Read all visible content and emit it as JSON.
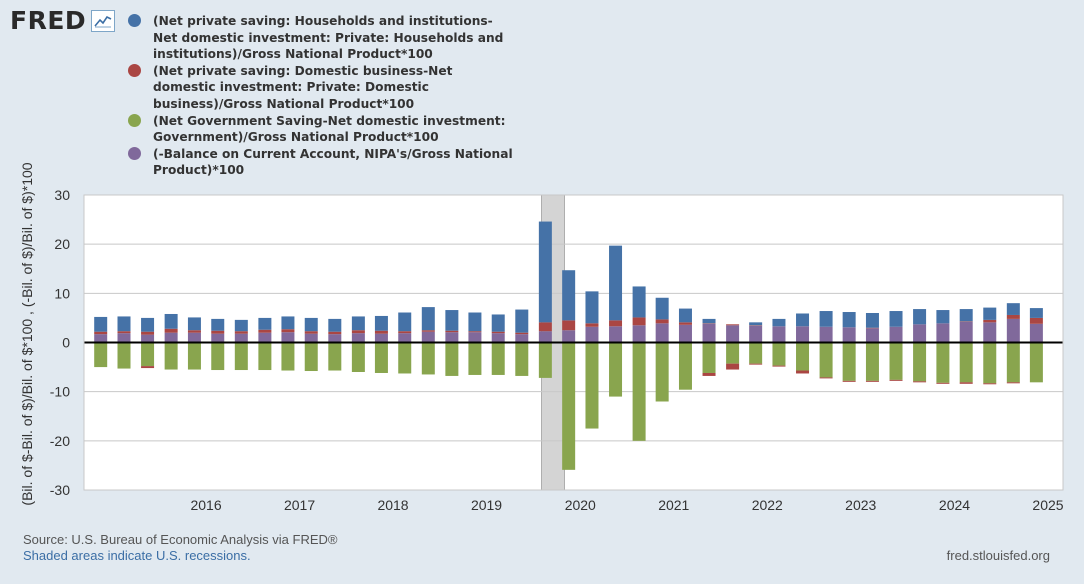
{
  "brand": {
    "name": "FRED"
  },
  "colors": {
    "households": "#4572a7",
    "business": "#aa4643",
    "government": "#89a54e",
    "current_account": "#80699b"
  },
  "chart_data": {
    "type": "bar",
    "stacked": true,
    "title": "",
    "ylabel": "(Bil. of $-Bil. of $)/Bil. of $*100 , (-Bil. of $)/Bil. of $)*100",
    "ylim": [
      -30,
      30
    ],
    "yticks": [
      30,
      20,
      10,
      0,
      -10,
      -20,
      -30
    ],
    "xlim": [
      "2015-04-01",
      "2025-07-01"
    ],
    "xticks": [
      "2016",
      "2017",
      "2018",
      "2019",
      "2020",
      "2021",
      "2022",
      "2023",
      "2024",
      "2025"
    ],
    "grid": true,
    "legend_position": "top-left",
    "recessions": [
      {
        "start": "2020-02-01",
        "end": "2020-04-30"
      }
    ],
    "x": [
      "2015-04-01",
      "2015-07-01",
      "2015-10-01",
      "2016-01-01",
      "2016-04-01",
      "2016-07-01",
      "2016-10-01",
      "2017-01-01",
      "2017-04-01",
      "2017-07-01",
      "2017-10-01",
      "2018-01-01",
      "2018-04-01",
      "2018-07-01",
      "2018-10-01",
      "2019-01-01",
      "2019-04-01",
      "2019-07-01",
      "2019-10-01",
      "2020-01-01",
      "2020-04-01",
      "2020-07-01",
      "2020-10-01",
      "2021-01-01",
      "2021-04-01",
      "2021-07-01",
      "2021-10-01",
      "2022-01-01",
      "2022-04-01",
      "2022-07-01",
      "2022-10-01",
      "2023-01-01",
      "2023-04-01",
      "2023-07-01",
      "2023-10-01",
      "2024-01-01",
      "2024-04-01",
      "2024-07-01",
      "2024-10-01",
      "2025-01-01",
      "2025-04-01"
    ],
    "series": [
      {
        "name": "(Net private saving: Households and institutions-Net domestic investment: Private: Households and institutions)/Gross National Product*100",
        "color": "#4572a7",
        "values": [
          3.0,
          3.0,
          2.8,
          3.0,
          2.6,
          2.4,
          2.3,
          2.4,
          2.6,
          2.7,
          2.6,
          2.8,
          3.0,
          3.8,
          4.7,
          4.2,
          3.8,
          3.5,
          4.7,
          20.5,
          10.2,
          6.5,
          15.2,
          6.3,
          4.4,
          2.8,
          0.9,
          0.0,
          0.6,
          1.5,
          2.6,
          3.2,
          3.1,
          3.0,
          3.2,
          3.1,
          2.7,
          2.5,
          2.5,
          2.4,
          2.0
        ]
      },
      {
        "name": "(Net private saving: Domestic business-Net domestic investment: Private: Domestic business)/Gross National Product*100",
        "color": "#aa4643",
        "values": [
          0.5,
          0.4,
          0.6,
          0.8,
          0.5,
          0.6,
          0.5,
          0.6,
          0.6,
          0.5,
          0.5,
          0.6,
          0.6,
          0.4,
          0.3,
          0.3,
          0.2,
          0.3,
          0.3,
          1.8,
          2.0,
          0.7,
          1.2,
          1.6,
          0.8,
          0.5,
          0.1,
          0.2,
          0.1,
          0.0,
          0.0,
          0.0,
          0.0,
          0.1,
          0.0,
          0.0,
          0.0,
          0.1,
          0.5,
          0.8,
          1.2
        ]
      },
      {
        "name": "(Net Government Saving-Net domestic investment: Government)/Gross National Product*100",
        "color": "#89a54e",
        "values": [
          -5.0,
          -5.3,
          -4.8,
          -5.5,
          -5.5,
          -5.6,
          -5.6,
          -5.6,
          -5.7,
          -5.8,
          -5.7,
          -6.0,
          -6.2,
          -6.3,
          -6.5,
          -6.8,
          -6.6,
          -6.6,
          -6.8,
          -7.2,
          -25.9,
          -17.5,
          -11.0,
          -20.0,
          -12.0,
          -9.6,
          -6.2,
          -4.3,
          -4.3,
          -4.7,
          -5.7,
          -7.1,
          -7.8,
          -7.8,
          -7.6,
          -7.9,
          -8.2,
          -8.1,
          -8.3,
          -8.1,
          -8.1
        ]
      },
      {
        "name": "(-Balance on Current Account, NIPA's/Gross National Product)*100",
        "color": "#80699b",
        "values": [
          1.7,
          1.9,
          1.6,
          2.0,
          2.0,
          1.8,
          1.8,
          2.0,
          2.1,
          1.8,
          1.7,
          1.9,
          1.8,
          1.9,
          2.2,
          2.1,
          2.1,
          1.9,
          1.7,
          2.3,
          2.5,
          3.2,
          3.3,
          3.5,
          3.9,
          3.6,
          3.8,
          3.5,
          3.4,
          3.3,
          3.3,
          3.2,
          3.1,
          2.9,
          3.2,
          3.7,
          3.9,
          4.2,
          4.1,
          4.8,
          3.8
        ]
      }
    ],
    "negative_tails": {
      "business": [
        0,
        0,
        -0.4,
        0,
        0,
        0,
        0,
        0,
        0,
        0,
        0,
        0,
        0,
        0,
        0,
        0,
        0,
        0,
        0,
        0,
        0,
        0,
        0,
        0,
        0,
        0,
        -0.6,
        -1.2,
        -0.2,
        -0.2,
        -0.6,
        -0.2,
        -0.2,
        -0.2,
        -0.2,
        -0.2,
        -0.2,
        -0.3,
        -0.2,
        -0.2,
        0
      ]
    }
  },
  "footer": {
    "source": "Source: U.S. Bureau of Economic Analysis via FRED®",
    "recessions_note": "Shaded areas indicate U.S. recessions.",
    "url": "fred.stlouisfed.org"
  }
}
